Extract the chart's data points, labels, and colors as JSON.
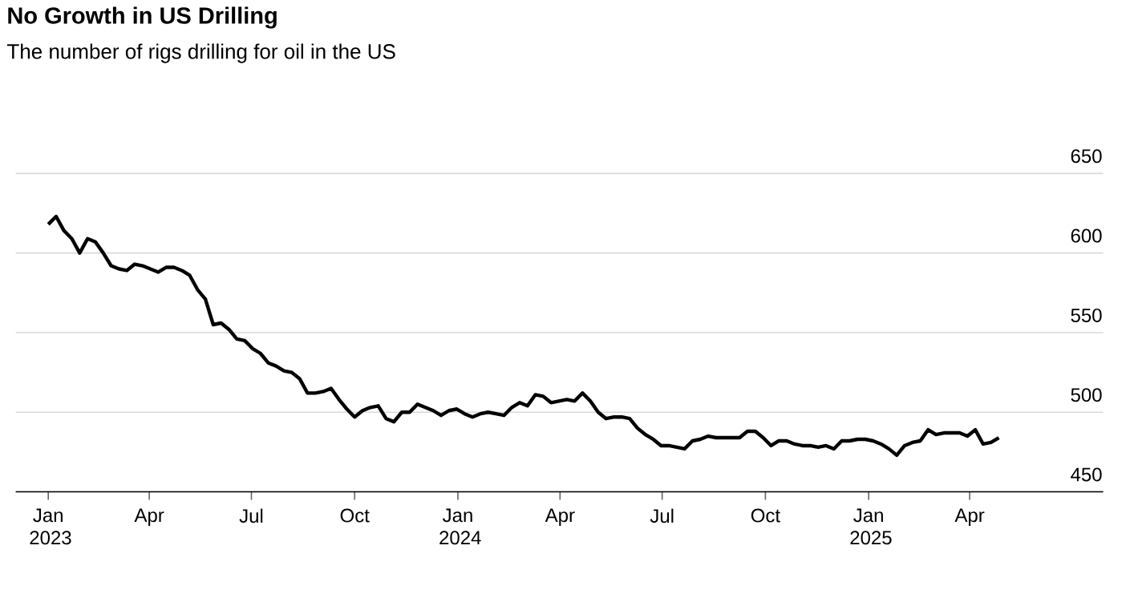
{
  "chart_data": {
    "type": "line",
    "title": "No Growth in US Drilling",
    "subtitle": "The number of rigs drilling for oil in the US",
    "xlim": [
      "2022-12-03",
      "2025-07-29"
    ],
    "ylim": [
      450,
      650
    ],
    "yticks": [
      450,
      500,
      550,
      600,
      650
    ],
    "grid": "y",
    "line_style": "solid",
    "xticks": [
      {
        "value": "2023-01-01",
        "label": "Jan 2023"
      },
      {
        "value": "2023-04-01",
        "label": "Apr"
      },
      {
        "value": "2023-07-01",
        "label": "Jul"
      },
      {
        "value": "2023-10-01",
        "label": "Oct"
      },
      {
        "value": "2024-01-01",
        "label": "Jan 2024"
      },
      {
        "value": "2024-04-01",
        "label": "Apr"
      },
      {
        "value": "2024-07-01",
        "label": "Jul"
      },
      {
        "value": "2024-10-01",
        "label": "Oct"
      },
      {
        "value": "2025-01-01",
        "label": "Jan 2025"
      },
      {
        "value": "2025-04-01",
        "label": "Apr"
      }
    ],
    "x": [
      "2023-01-01",
      "2023-01-08",
      "2023-01-15",
      "2023-01-22",
      "2023-01-29",
      "2023-02-05",
      "2023-02-12",
      "2023-02-19",
      "2023-02-26",
      "2023-03-05",
      "2023-03-12",
      "2023-03-19",
      "2023-03-26",
      "2023-04-02",
      "2023-04-09",
      "2023-04-16",
      "2023-04-23",
      "2023-04-30",
      "2023-05-07",
      "2023-05-14",
      "2023-05-21",
      "2023-05-28",
      "2023-06-04",
      "2023-06-11",
      "2023-06-18",
      "2023-06-25",
      "2023-07-02",
      "2023-07-09",
      "2023-07-16",
      "2023-07-23",
      "2023-07-30",
      "2023-08-06",
      "2023-08-13",
      "2023-08-20",
      "2023-08-27",
      "2023-09-03",
      "2023-09-10",
      "2023-09-17",
      "2023-09-24",
      "2023-10-01",
      "2023-10-08",
      "2023-10-15",
      "2023-10-22",
      "2023-10-29",
      "2023-11-05",
      "2023-11-12",
      "2023-11-19",
      "2023-11-26",
      "2023-12-03",
      "2023-12-10",
      "2023-12-17",
      "2023-12-24",
      "2023-12-31",
      "2024-01-07",
      "2024-01-14",
      "2024-01-21",
      "2024-01-28",
      "2024-02-04",
      "2024-02-11",
      "2024-02-18",
      "2024-02-25",
      "2024-03-03",
      "2024-03-10",
      "2024-03-17",
      "2024-03-24",
      "2024-03-31",
      "2024-04-07",
      "2024-04-14",
      "2024-04-21",
      "2024-04-28",
      "2024-05-05",
      "2024-05-12",
      "2024-05-19",
      "2024-05-26",
      "2024-06-02",
      "2024-06-09",
      "2024-06-16",
      "2024-06-23",
      "2024-06-30",
      "2024-07-07",
      "2024-07-14",
      "2024-07-21",
      "2024-07-28",
      "2024-08-04",
      "2024-08-11",
      "2024-08-18",
      "2024-08-25",
      "2024-09-01",
      "2024-09-08",
      "2024-09-15",
      "2024-09-22",
      "2024-09-29",
      "2024-10-06",
      "2024-10-13",
      "2024-10-20",
      "2024-10-27",
      "2024-11-03",
      "2024-11-10",
      "2024-11-17",
      "2024-11-24",
      "2024-12-01",
      "2024-12-08",
      "2024-12-15",
      "2024-12-22",
      "2024-12-29",
      "2025-01-05",
      "2025-01-12",
      "2025-01-19",
      "2025-01-26",
      "2025-02-02",
      "2025-02-09",
      "2025-02-16",
      "2025-02-23",
      "2025-03-02",
      "2025-03-09",
      "2025-03-16",
      "2025-03-23",
      "2025-03-30",
      "2025-04-06",
      "2025-04-13",
      "2025-04-20",
      "2025-04-27"
    ],
    "series": [
      {
        "color": "#000000",
        "values": [
          618,
          623,
          614,
          609,
          600,
          609,
          607,
          600,
          592,
          590,
          589,
          593,
          592,
          590,
          588,
          591,
          591,
          589,
          586,
          577,
          571,
          555,
          556,
          552,
          546,
          545,
          540,
          537,
          531,
          529,
          526,
          525,
          521,
          512,
          512,
          513,
          515,
          508,
          502,
          497,
          501,
          503,
          504,
          496,
          494,
          500,
          500,
          505,
          503,
          501,
          498,
          501,
          502,
          499,
          497,
          499,
          500,
          499,
          498,
          503,
          506,
          504,
          511,
          510,
          506,
          507,
          508,
          507,
          512,
          507,
          500,
          496,
          497,
          497,
          496,
          490,
          486,
          483,
          479,
          479,
          478,
          477,
          482,
          483,
          485,
          484,
          484,
          484,
          484,
          488,
          488,
          484,
          479,
          482,
          482,
          480,
          479,
          479,
          478,
          479,
          477,
          482,
          482,
          483,
          483,
          482,
          480,
          477,
          473,
          479,
          481,
          482,
          489,
          486,
          487,
          487,
          487,
          485,
          489,
          480,
          481,
          484
        ]
      }
    ]
  }
}
